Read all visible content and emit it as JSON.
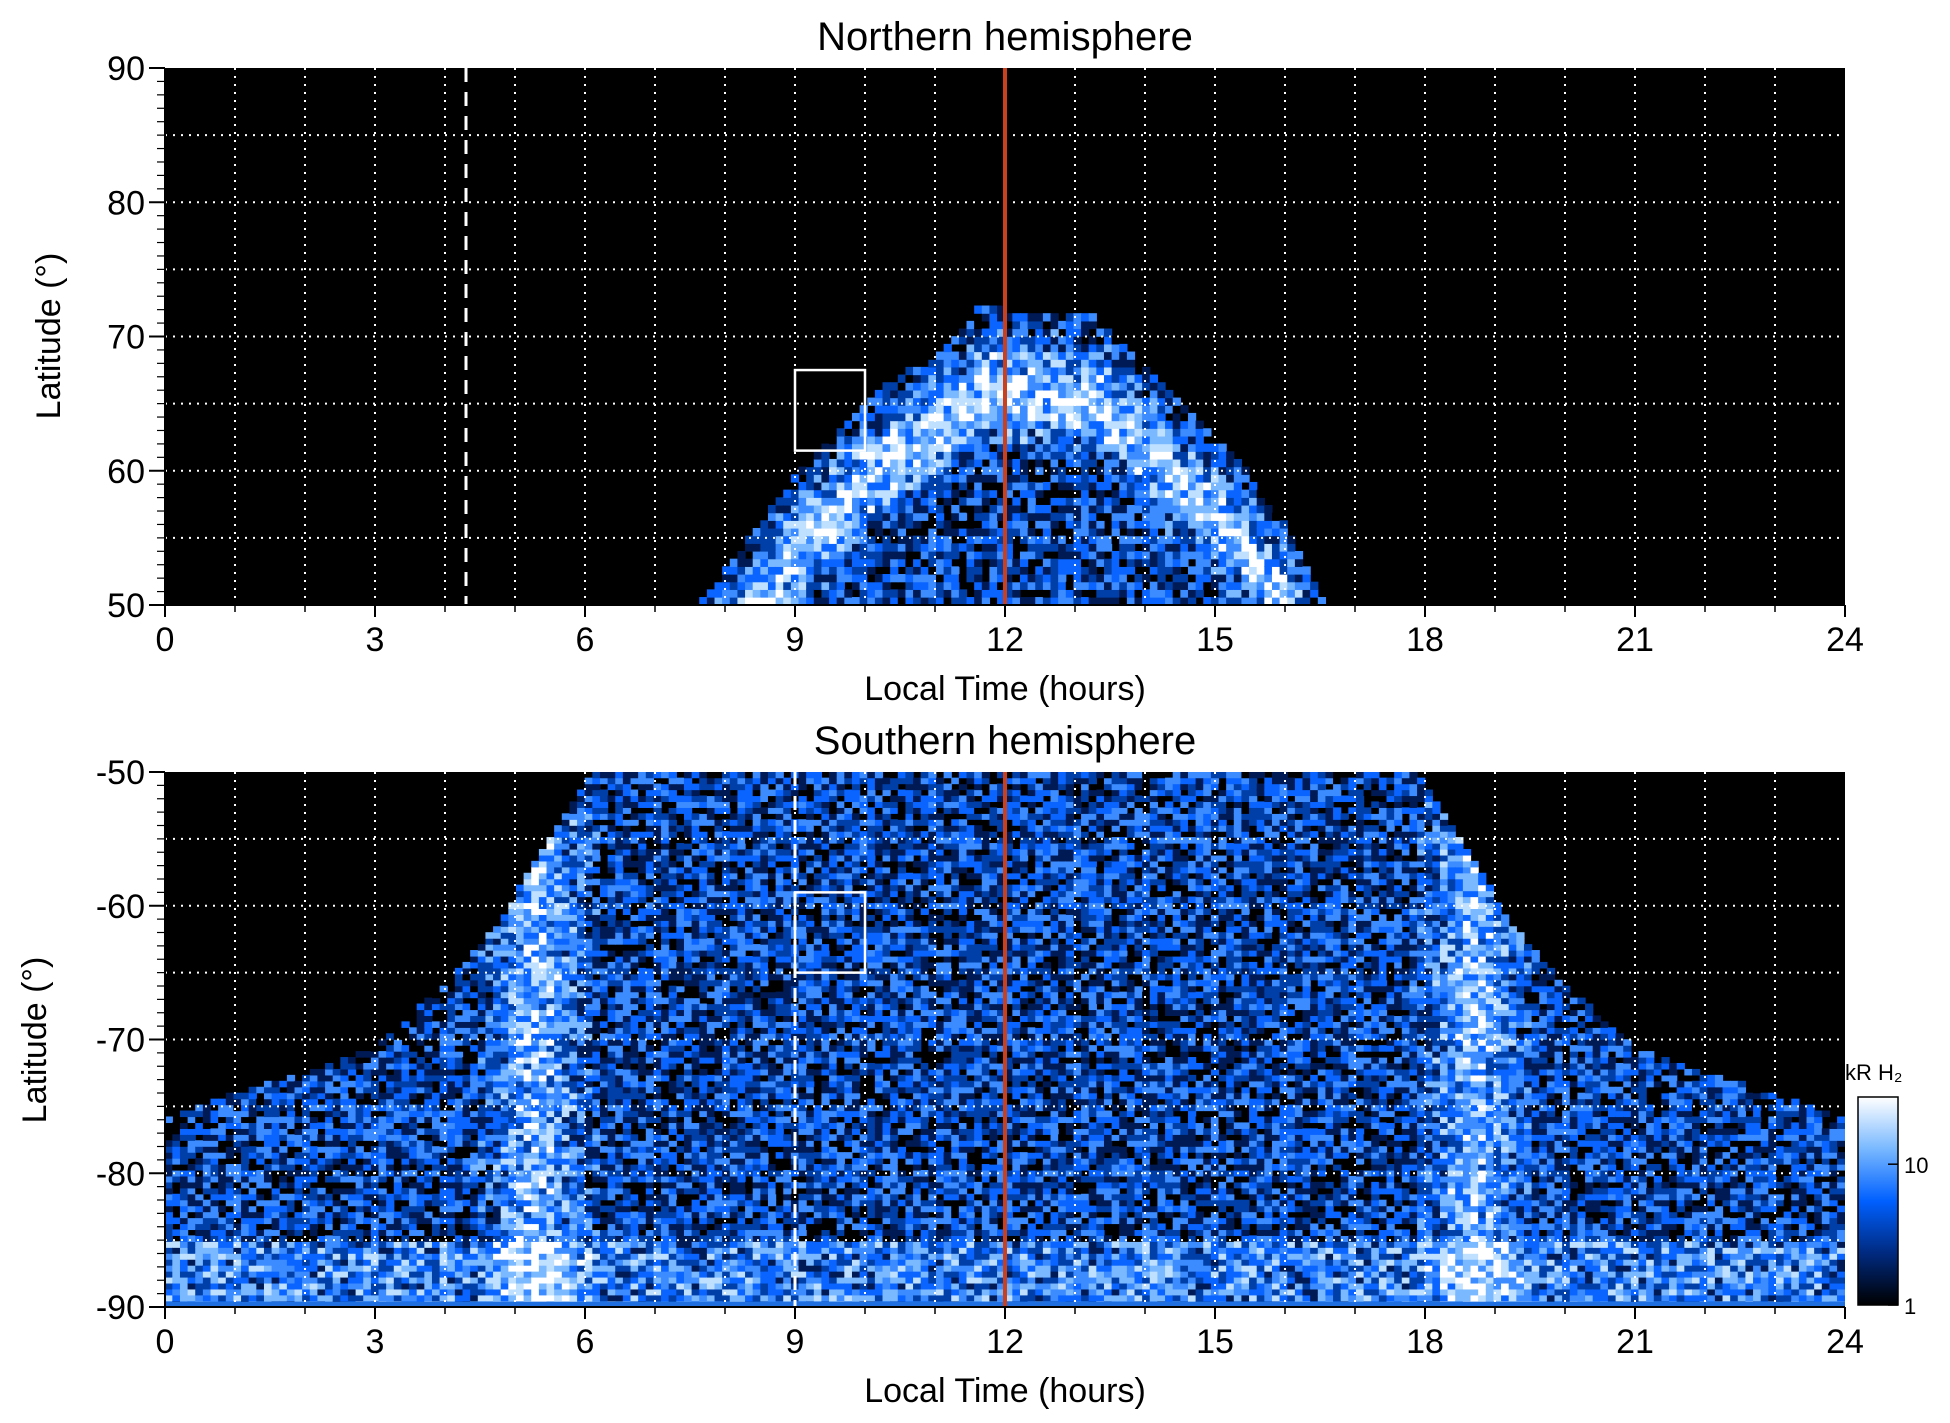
{
  "chart_data": [
    {
      "type": "heatmap",
      "title": "Northern hemisphere",
      "xlabel": "Local Time (hours)",
      "ylabel": "Latitude (°)",
      "xlim": [
        0,
        24
      ],
      "ylim": [
        50,
        90
      ],
      "xticks": [
        "0",
        "3",
        "6",
        "9",
        "12",
        "15",
        "18",
        "21",
        "24"
      ],
      "yticks": [
        "50",
        "60",
        "70",
        "80",
        "90"
      ],
      "grid": true,
      "vertical_lines": [
        {
          "x": 12,
          "style": "solid",
          "color": "#c8401e"
        },
        {
          "x": 4.3,
          "style": "dashed",
          "color": "#ffffff"
        }
      ],
      "box": {
        "x": [
          9,
          10
        ],
        "y": [
          61.5,
          67.5
        ]
      },
      "coverage_edge": [
        [
          7.6,
          50
        ],
        [
          8.5,
          56
        ],
        [
          9.2,
          61
        ],
        [
          10.2,
          66
        ],
        [
          11.2,
          69.5
        ],
        [
          11.7,
          72.5
        ],
        [
          12.3,
          71.5
        ],
        [
          13.3,
          71.5
        ],
        [
          14.3,
          66
        ],
        [
          15.3,
          61
        ],
        [
          16.0,
          56
        ],
        [
          16.6,
          50
        ]
      ]
    },
    {
      "type": "heatmap",
      "title": "Southern hemisphere",
      "xlabel": "Local Time (hours)",
      "ylabel": "Latitude (°)",
      "xlim": [
        0,
        24
      ],
      "ylim": [
        -90,
        -50
      ],
      "xticks": [
        "0",
        "3",
        "6",
        "9",
        "12",
        "15",
        "18",
        "21",
        "24"
      ],
      "yticks": [
        "-90",
        "-80",
        "-70",
        "-60",
        "-50"
      ],
      "grid": true,
      "vertical_lines": [
        {
          "x": 12,
          "style": "solid",
          "color": "#c8401e"
        },
        {
          "x": 9,
          "style": "dashed",
          "color": "#ffffff"
        }
      ],
      "box": {
        "x": [
          9,
          10
        ],
        "y": [
          -65,
          -59
        ]
      },
      "coverage_edge": [
        [
          0,
          -76
        ],
        [
          1,
          -74
        ],
        [
          2,
          -72.5
        ],
        [
          3,
          -70.5
        ],
        [
          4,
          -66
        ],
        [
          4.8,
          -61
        ],
        [
          5.5,
          -55
        ],
        [
          6.1,
          -50
        ],
        [
          17.9,
          -50
        ],
        [
          18.5,
          -55
        ],
        [
          19.2,
          -61
        ],
        [
          20,
          -66
        ],
        [
          21,
          -70.5
        ],
        [
          22,
          -72.5
        ],
        [
          23,
          -74
        ],
        [
          24,
          -76
        ]
      ],
      "colorbar": {
        "label": "kR H₂",
        "ticks": [
          "1",
          "10"
        ],
        "range": [
          1,
          30
        ],
        "scale": "log",
        "colors": [
          "#000000",
          "#002a80",
          "#0060ff",
          "#78b8ff",
          "#ffffff"
        ]
      }
    }
  ]
}
